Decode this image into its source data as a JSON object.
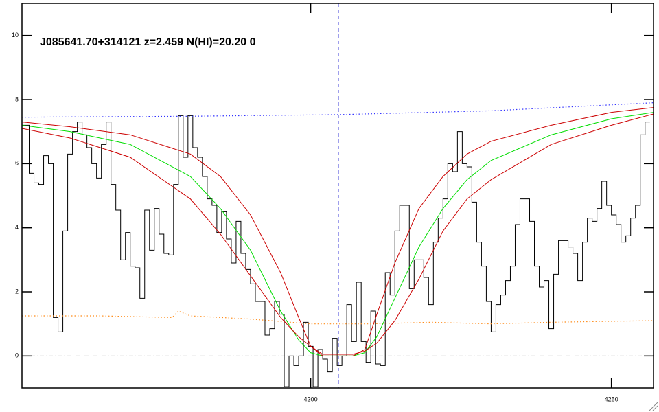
{
  "chart_data": {
    "type": "line",
    "title": "J085641.70+314121 z=2.459 N(HI)=20.20 0",
    "xlim": [
      4152,
      4257
    ],
    "ylim": [
      -1,
      11
    ],
    "xticks": [
      4200,
      4250
    ],
    "yticks": [
      0,
      2,
      4,
      6,
      8,
      10
    ],
    "vlines": [
      {
        "value": 4204.6,
        "color": "#0000cc",
        "style": "dashed"
      }
    ],
    "hlines": [
      {
        "value": 0,
        "color": "#999999",
        "style": "dashdot"
      }
    ],
    "series": [
      {
        "color": "#000000",
        "style": "step",
        "x": [
          4152,
          4152.8,
          4153.6,
          4154.4,
          4155.2,
          4156,
          4156.8,
          4157.6,
          4158.4,
          4159.2,
          4160,
          4160.8,
          4161.6,
          4162.4,
          4163.2,
          4164,
          4164.8,
          4165.6,
          4166.4,
          4167.2,
          4168,
          4168.8,
          4169.6,
          4170.4,
          4171.2,
          4172,
          4172.8,
          4173.6,
          4174.4,
          4175.2,
          4176,
          4176.8,
          4177.6,
          4178.4,
          4179.2,
          4180,
          4180.8,
          4181.6,
          4182.4,
          4183.2,
          4184,
          4184.8,
          4185.6,
          4186.4,
          4187.2,
          4188,
          4188.8,
          4189.6,
          4190.4,
          4191.2,
          4192,
          4192.8,
          4193.6,
          4194.4,
          4195.2,
          4196,
          4196.8,
          4197.6,
          4198.4,
          4199.2,
          4200,
          4200.8,
          4201.6,
          4202.4,
          4203.2,
          4204,
          4204.8,
          4205.6,
          4206.4,
          4207.2,
          4208,
          4208.8,
          4209.6,
          4210.4,
          4211.2,
          4212,
          4212.8,
          4213.6,
          4214.4,
          4215.2,
          4216,
          4216.8,
          4217.6,
          4218.4,
          4219.2,
          4220,
          4220.8,
          4221.6,
          4222.4,
          4223.2,
          4224,
          4224.8,
          4225.6,
          4226.4,
          4227.2,
          4228,
          4228.8,
          4229.6,
          4230.4,
          4231.2,
          4232,
          4232.8,
          4233.6,
          4234.4,
          4235.2,
          4236,
          4236.8,
          4237.6,
          4238.4,
          4239.2,
          4240,
          4240.8,
          4241.6,
          4242.4,
          4243.2,
          4244,
          4244.8,
          4245.6,
          4246.4,
          4247.2,
          4248,
          4248.8,
          4249.6,
          4250.4,
          4251.2,
          4252,
          4252.8,
          4253.6,
          4254.4,
          4255.2,
          4256
        ],
        "values": [
          7.2,
          7.2,
          5.7,
          5.4,
          5.35,
          6.25,
          6.0,
          1.2,
          0.75,
          3.9,
          6.3,
          7.0,
          7.3,
          6.9,
          6.5,
          6.0,
          5.55,
          6.6,
          7.3,
          5.35,
          4.55,
          3.0,
          3.85,
          2.8,
          2.75,
          1.8,
          4.55,
          3.3,
          4.6,
          3.8,
          3.2,
          3.15,
          5.35,
          7.5,
          6.2,
          7.5,
          6.5,
          6.2,
          5.6,
          4.9,
          4.7,
          3.85,
          4.5,
          3.65,
          2.9,
          4.2,
          3.2,
          2.7,
          2.25,
          1.7,
          1.7,
          0.65,
          0.85,
          1.7,
          1.3,
          -0.96,
          0.0,
          -0.3,
          0.0,
          1.05,
          0.3,
          -0.96,
          0.2,
          -0.1,
          -0.5,
          0.55,
          -0.3,
          0.0,
          1.6,
          0.45,
          2.3,
          0.45,
          -0.2,
          1.4,
          -0.25,
          -0.3,
          2.6,
          1.9,
          3.9,
          4.7,
          4.7,
          2.1,
          3.0,
          3.0,
          2.45,
          1.6,
          3.55,
          4.3,
          4.9,
          6.0,
          5.75,
          7.0,
          6.0,
          5.9,
          4.8,
          3.55,
          2.8,
          1.7,
          0.75,
          1.6,
          1.9,
          2.35,
          2.8,
          4.1,
          4.9,
          4.9,
          4.2,
          2.8,
          2.15,
          2.35,
          0.85,
          2.55,
          3.6,
          3.6,
          3.4,
          3.2,
          2.35,
          3.55,
          4.3,
          4.2,
          4.6,
          5.45,
          4.7,
          4.4,
          4.1,
          3.55,
          3.75,
          4.3,
          4.7,
          6.9,
          7.3
        ]
      },
      {
        "color": "#ff8c1a",
        "style": "dotted",
        "x": [
          4152,
          4165,
          4177,
          4178,
          4180,
          4190,
          4200,
          4210,
          4220,
          4230,
          4240,
          4257
        ],
        "values": [
          1.25,
          1.25,
          1.2,
          1.4,
          1.25,
          1.15,
          1.0,
          1.0,
          1.05,
          1.0,
          1.05,
          1.1
        ]
      },
      {
        "color": "#3333ff",
        "style": "dotted",
        "x": [
          4152,
          4180,
          4204.6,
          4230,
          4257
        ],
        "values": [
          7.45,
          7.48,
          7.53,
          7.65,
          7.9
        ]
      },
      {
        "color": "#00dd00",
        "style": "solid",
        "x": [
          4152,
          4160,
          4170,
          4180,
          4185,
          4190,
          4195,
          4198,
          4200,
          4202,
          4207,
          4209,
          4211,
          4214,
          4218,
          4222,
          4226,
          4230,
          4240,
          4250,
          4257
        ],
        "values": [
          7.2,
          7.0,
          6.6,
          5.6,
          4.6,
          3.3,
          1.4,
          0.5,
          0.1,
          0,
          0,
          0.1,
          0.6,
          1.8,
          3.4,
          4.6,
          5.5,
          6.1,
          6.9,
          7.4,
          7.6
        ]
      },
      {
        "color": "#cc0000",
        "style": "solid",
        "x": [
          4152,
          4160,
          4170,
          4180,
          4185,
          4190,
          4195,
          4198,
          4200,
          4202,
          4207,
          4209,
          4211,
          4214,
          4218,
          4222,
          4226,
          4230,
          4240,
          4250,
          4257
        ],
        "values": [
          7.3,
          7.15,
          6.9,
          6.3,
          5.6,
          4.4,
          2.6,
          1.2,
          0.3,
          0,
          0,
          0.2,
          1.3,
          2.9,
          4.6,
          5.6,
          6.3,
          6.7,
          7.2,
          7.6,
          7.75
        ]
      },
      {
        "color": "#cc0000",
        "style": "solid",
        "x": [
          4152,
          4160,
          4170,
          4180,
          4185,
          4190,
          4195,
          4198,
          4200,
          4202,
          4207,
          4209,
          4211,
          4214,
          4218,
          4222,
          4226,
          4230,
          4240,
          4250,
          4257
        ],
        "values": [
          7.1,
          6.8,
          6.2,
          4.9,
          3.8,
          2.5,
          1.2,
          0.6,
          0.3,
          0.05,
          0.05,
          0.15,
          0.4,
          1.1,
          2.4,
          3.9,
          4.9,
          5.5,
          6.6,
          7.2,
          7.55
        ]
      }
    ]
  }
}
